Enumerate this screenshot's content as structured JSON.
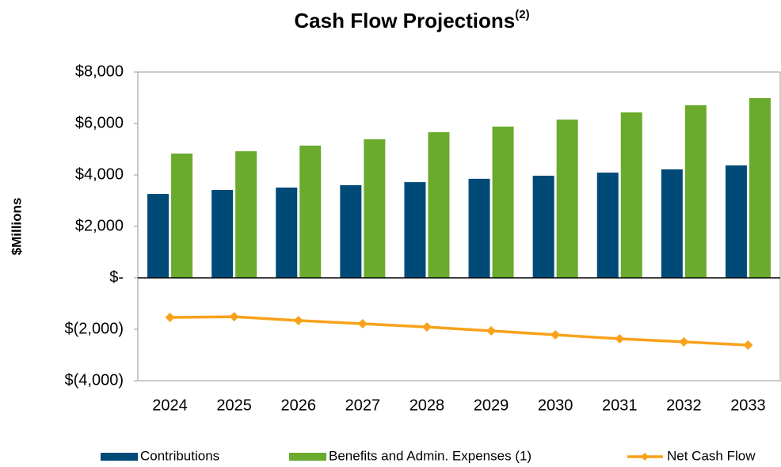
{
  "chart_data": {
    "type": "bar_line",
    "title": "Cash Flow Projections",
    "title_superscript": "(2)",
    "y_label": "$Millions",
    "categories": [
      "2024",
      "2025",
      "2026",
      "2027",
      "2028",
      "2029",
      "2030",
      "2031",
      "2032",
      "2033"
    ],
    "series": [
      {
        "name": "Contributions",
        "color": "#004a78",
        "type": "bar",
        "values": [
          3260,
          3415,
          3510,
          3600,
          3720,
          3850,
          3970,
          4090,
          4215,
          4370
        ]
      },
      {
        "name": "Benefits and Admin. Expenses (1)",
        "color": "#6aaa2c",
        "type": "bar",
        "values": [
          4830,
          4920,
          5140,
          5385,
          5660,
          5880,
          6150,
          6430,
          6710,
          6985
        ]
      },
      {
        "name": "Net Cash Flow",
        "color": "#f9a11b",
        "type": "line",
        "values": [
          -1540,
          -1510,
          -1660,
          -1785,
          -1910,
          -2060,
          -2215,
          -2370,
          -2490,
          -2615
        ]
      }
    ],
    "ylim": [
      -4000,
      8000
    ],
    "yticks": [
      {
        "value": 8000,
        "label": "$8,000"
      },
      {
        "value": 6000,
        "label": "$6,000"
      },
      {
        "value": 4000,
        "label": "$4,000"
      },
      {
        "value": 2000,
        "label": "$2,000"
      },
      {
        "value": 0,
        "label": "$-"
      },
      {
        "value": -2000,
        "label": "$(2,000)"
      },
      {
        "value": -4000,
        "label": "$(4,000)"
      }
    ],
    "grid": false,
    "legend": "bottom"
  }
}
